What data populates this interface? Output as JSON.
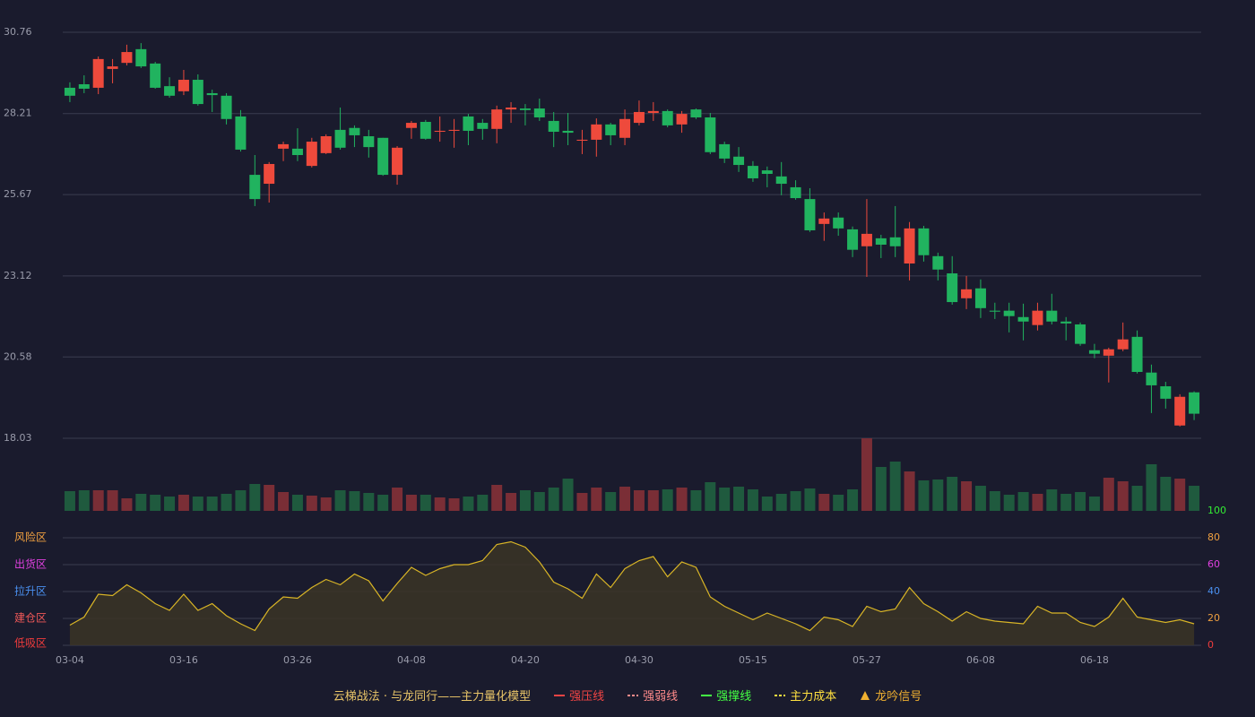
{
  "chart_data": [
    {
      "type": "candlestick",
      "categories": [
        "03-04",
        null,
        null,
        null,
        null,
        null,
        null,
        null,
        "03-16",
        null,
        null,
        null,
        null,
        null,
        null,
        null,
        "03-26",
        null,
        null,
        null,
        null,
        null,
        null,
        null,
        "04-08",
        null,
        null,
        null,
        null,
        null,
        null,
        null,
        "04-20",
        null,
        null,
        null,
        null,
        null,
        null,
        null,
        "04-30",
        null,
        null,
        null,
        null,
        null,
        null,
        null,
        "05-15",
        null,
        null,
        null,
        null,
        null,
        null,
        null,
        "05-27",
        null,
        null,
        null,
        null,
        null,
        null,
        null,
        "06-08",
        null,
        null,
        null,
        null,
        null,
        null,
        null,
        "06-18",
        null,
        null,
        null,
        null,
        null,
        null,
        null
      ],
      "open": [
        29.02,
        29.13,
        29.02,
        29.61,
        29.8,
        30.23,
        29.78,
        29.07,
        28.91,
        29.27,
        28.85,
        28.77,
        28.12,
        26.29,
        26.01,
        27.11,
        27.11,
        26.57,
        26.97,
        27.7,
        27.76,
        27.5,
        27.45,
        26.29,
        27.76,
        27.95,
        27.64,
        27.67,
        28.12,
        27.92,
        27.73,
        28.34,
        28.37,
        28.37,
        27.98,
        27.67,
        27.36,
        27.39,
        27.87,
        27.45,
        27.92,
        28.23,
        28.29,
        27.87,
        28.34,
        28.09,
        27.25,
        26.86,
        26.57,
        26.43,
        26.24,
        25.9,
        25.53,
        24.75,
        24.95,
        24.58,
        24.05,
        24.3,
        24.33,
        23.51,
        24.61,
        23.74,
        23.2,
        22.42,
        22.73,
        22.03,
        22.03,
        21.83,
        21.58,
        22.03,
        21.69,
        21.6,
        20.79,
        20.62,
        20.82,
        21.21,
        20.09,
        19.66,
        18.43,
        19.47
      ],
      "high": [
        29.19,
        29.41,
        30.0,
        29.92,
        30.37,
        30.42,
        29.83,
        29.35,
        29.58,
        29.44,
        28.96,
        28.85,
        28.32,
        26.91,
        26.69,
        27.33,
        27.75,
        27.45,
        27.56,
        28.4,
        27.84,
        27.7,
        27.45,
        27.19,
        27.98,
        28.01,
        28.12,
        28.04,
        28.2,
        28.04,
        28.46,
        28.57,
        28.51,
        28.68,
        28.26,
        28.23,
        27.7,
        28.06,
        27.92,
        28.34,
        28.62,
        28.57,
        28.34,
        28.29,
        28.37,
        28.23,
        27.33,
        27.16,
        26.72,
        26.55,
        26.69,
        26.12,
        25.87,
        25.11,
        25.11,
        24.67,
        25.53,
        24.41,
        25.31,
        24.81,
        24.69,
        23.85,
        23.74,
        23.12,
        23.01,
        22.28,
        22.28,
        22.25,
        22.28,
        22.56,
        21.83,
        21.66,
        20.99,
        20.87,
        21.66,
        21.41,
        20.34,
        19.8,
        19.41,
        19.5
      ],
      "low": [
        28.57,
        28.85,
        28.82,
        29.16,
        29.72,
        29.64,
        28.99,
        28.71,
        28.79,
        28.46,
        28.26,
        27.87,
        27.02,
        25.31,
        25.42,
        26.72,
        26.72,
        26.52,
        26.94,
        27.08,
        27.16,
        26.83,
        26.26,
        25.98,
        27.42,
        27.39,
        27.33,
        27.14,
        27.22,
        27.39,
        27.28,
        27.92,
        27.84,
        27.98,
        27.16,
        27.22,
        26.94,
        26.86,
        27.22,
        27.22,
        27.84,
        27.98,
        27.78,
        27.61,
        28.04,
        26.94,
        26.66,
        26.38,
        26.07,
        25.9,
        25.65,
        25.51,
        24.5,
        24.22,
        24.38,
        23.71,
        23.09,
        23.68,
        23.71,
        22.98,
        23.57,
        22.98,
        22.22,
        22.08,
        21.8,
        21.77,
        21.35,
        21.1,
        21.41,
        21.6,
        21.1,
        20.93,
        20.54,
        19.78,
        20.76,
        20.06,
        18.82,
        18.96,
        18.4,
        18.6
      ],
      "close": [
        28.77,
        28.99,
        29.92,
        29.69,
        30.14,
        29.69,
        29.02,
        28.77,
        29.27,
        28.51,
        28.79,
        28.04,
        27.08,
        25.53,
        26.63,
        27.25,
        26.91,
        27.33,
        27.5,
        27.14,
        27.53,
        27.16,
        26.29,
        27.14,
        27.92,
        27.42,
        27.67,
        27.7,
        27.67,
        27.73,
        28.34,
        28.4,
        28.32,
        28.09,
        27.64,
        27.61,
        27.39,
        27.87,
        27.53,
        28.04,
        28.26,
        28.29,
        27.84,
        28.2,
        28.09,
        27.0,
        26.8,
        26.6,
        26.18,
        26.32,
        26.01,
        25.56,
        24.55,
        24.92,
        24.61,
        23.94,
        24.44,
        24.1,
        24.05,
        24.61,
        23.77,
        23.32,
        22.3,
        22.7,
        22.11,
        22.0,
        21.86,
        21.69,
        22.03,
        21.69,
        21.63,
        20.99,
        20.68,
        20.82,
        21.13,
        20.11,
        19.69,
        19.27,
        19.33,
        18.8
      ],
      "up_color": "#ee4a3c",
      "down_color": "#21b35f",
      "ylim": [
        18.03,
        30.76
      ],
      "yticks": [
        18.03,
        20.58,
        23.12,
        25.67,
        28.21,
        30.76
      ],
      "grid": true
    },
    {
      "type": "bar",
      "values": [
        22,
        23,
        23,
        23,
        14,
        19,
        18,
        16,
        18,
        16,
        16,
        19,
        23,
        30,
        29,
        21,
        18,
        17,
        15,
        23,
        22,
        20,
        18,
        26,
        18,
        18,
        15,
        14,
        16,
        18,
        29,
        20,
        23,
        21,
        26,
        36,
        20,
        26,
        21,
        27,
        23,
        23,
        24,
        26,
        23,
        32,
        26,
        27,
        24,
        16,
        19,
        22,
        25,
        19,
        18,
        24,
        81,
        49,
        55,
        44,
        34,
        35,
        38,
        33,
        28,
        22,
        18,
        21,
        19,
        24,
        19,
        21,
        16,
        37,
        33,
        28,
        52,
        38,
        36,
        28
      ]
    },
    {
      "type": "area",
      "color": "#d9b526",
      "values": [
        15,
        21,
        38,
        37,
        45,
        39,
        31,
        26,
        38,
        26,
        31,
        22,
        16,
        11,
        27,
        36,
        35,
        43,
        49,
        45,
        53,
        48,
        33,
        46,
        58,
        52,
        57,
        60,
        60,
        63,
        75,
        77,
        73,
        62,
        47,
        42,
        35,
        53,
        43,
        57,
        63,
        66,
        51,
        62,
        58,
        36,
        29,
        24,
        19,
        24,
        20,
        16,
        11,
        21,
        19,
        14,
        29,
        25,
        27,
        43,
        31,
        25,
        18,
        25,
        20,
        18,
        17,
        16,
        29,
        24,
        24,
        17,
        14,
        21,
        35,
        21,
        19,
        17,
        19,
        16
      ],
      "ylim": [
        0,
        100
      ],
      "yticks": [
        0,
        20,
        40,
        60,
        80,
        100
      ],
      "ytick_colors": [
        "#f03c3c",
        "#f0a040",
        "#4a90f0",
        "#e040e0",
        "#f0a040",
        "#33ee33"
      ],
      "zones": [
        {
          "label": "风险区",
          "value": 80,
          "color": "#f0a040"
        },
        {
          "label": "出货区",
          "value": 60,
          "color": "#e040e0"
        },
        {
          "label": "拉升区",
          "value": 40,
          "color": "#4a90f0"
        },
        {
          "label": "建仓区",
          "value": 20,
          "color": "#f05858"
        },
        {
          "label": "低吸区",
          "value": 0,
          "color": "#f03c3c"
        }
      ]
    }
  ],
  "legend": {
    "title": "云梯战法 · 与龙同行——主力量化模型",
    "items": [
      {
        "name": "强压线",
        "color": "#f04444",
        "style": "solid"
      },
      {
        "name": "强弱线",
        "color": "#ff8a8a",
        "style": "dashed"
      },
      {
        "name": "强撑线",
        "color": "#44ff44",
        "style": "solid"
      },
      {
        "name": "主力成本",
        "color": "#ffe040",
        "style": "dashed"
      },
      {
        "name": "龙吟信号",
        "color": "#f0b030",
        "style": "triangle"
      }
    ]
  }
}
